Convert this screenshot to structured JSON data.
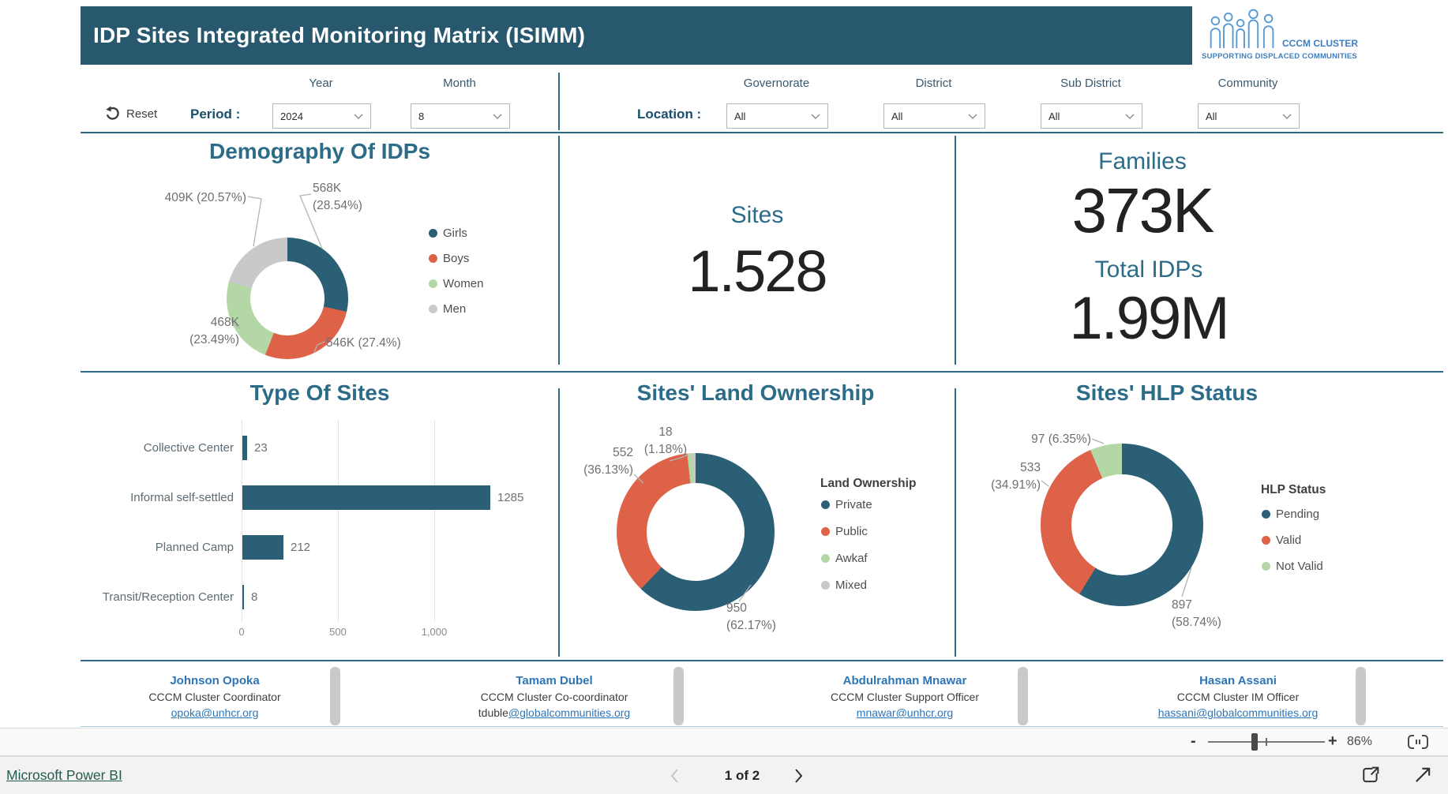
{
  "header": {
    "title": "IDP Sites Integrated Monitoring Matrix (ISIMM)",
    "logo": {
      "name": "CCCM CLUSTER",
      "tagline": "SUPPORTING DISPLACED COMMUNITIES"
    }
  },
  "filters": {
    "reset_label": "Reset",
    "period_label": "Period :",
    "location_label": "Location :",
    "year": {
      "label": "Year",
      "value": "2024"
    },
    "month": {
      "label": "Month",
      "value": "8"
    },
    "governorate": {
      "label": "Governorate",
      "value": "All"
    },
    "district": {
      "label": "District",
      "value": "All"
    },
    "sub_district": {
      "label": "Sub District",
      "value": "All"
    },
    "community": {
      "label": "Community",
      "value": "All"
    }
  },
  "kpis": {
    "sites": {
      "label": "Sites",
      "value": "1.528"
    },
    "families": {
      "label": "Families",
      "value": "373K"
    },
    "total_idps": {
      "label": "Total IDPs",
      "value": "1.99M"
    }
  },
  "chart_data": [
    {
      "type": "donut",
      "title": "Demography Of IDPs",
      "legend_position": "right",
      "slices": [
        {
          "label": "Girls",
          "display_value": "568K",
          "pct": 28.54,
          "color": "#2B5F75",
          "callout": [
            "568K",
            "(28.54%)"
          ]
        },
        {
          "label": "Boys",
          "display_value": "546K",
          "pct": 27.4,
          "color": "#DD6248",
          "callout": [
            "546K (27.4%)"
          ]
        },
        {
          "label": "Women",
          "display_value": "468K",
          "pct": 23.49,
          "color": "#B3D8A6",
          "callout": [
            "468K",
            "(23.49%)"
          ]
        },
        {
          "label": "Men",
          "display_value": "409K",
          "pct": 20.57,
          "color": "#C9C9C9",
          "callout": [
            "409K (20.57%)"
          ]
        }
      ]
    },
    {
      "type": "bar",
      "title": "Type Of Sites",
      "orientation": "horizontal",
      "categories": [
        "Collective Center",
        "Informal self-settled",
        "Planned Camp",
        "Transit/Reception Center"
      ],
      "values": [
        23,
        1285,
        212,
        8
      ],
      "value_labels": [
        "23",
        "1285",
        "212",
        "8"
      ],
      "x_ticks": [
        {
          "label": "0",
          "value": 0
        },
        {
          "label": "500",
          "value": 500
        },
        {
          "label": "1,000",
          "value": 1000
        }
      ],
      "xlim": [
        0,
        1330
      ],
      "bar_color": "#2B5F75",
      "grid": "dotted-vertical"
    },
    {
      "type": "donut",
      "title": "Sites' Land Ownership",
      "legend_title": "Land Ownership",
      "legend_position": "right",
      "slices": [
        {
          "label": "Private",
          "value": 950,
          "pct": 62.17,
          "color": "#2B5F75",
          "callout": [
            "950",
            "(62.17%)"
          ]
        },
        {
          "label": "Public",
          "value": 552,
          "pct": 36.13,
          "color": "#DD6248",
          "callout": [
            "552",
            "(36.13%)"
          ]
        },
        {
          "label": "Awkaf",
          "value": 18,
          "pct": 1.18,
          "color": "#B3D8A6",
          "callout": [
            "18",
            "(1.18%)"
          ]
        },
        {
          "label": "Mixed",
          "value": 8,
          "pct": 0.52,
          "color": "#C9C9C9",
          "callout": []
        }
      ]
    },
    {
      "type": "donut",
      "title": "Sites' HLP Status",
      "legend_title": "HLP Status",
      "legend_position": "right",
      "slices": [
        {
          "label": "Pending",
          "value": 897,
          "pct": 58.74,
          "color": "#2B5F75",
          "callout": [
            "897",
            "(58.74%)"
          ]
        },
        {
          "label": "Valid",
          "value": 533,
          "pct": 34.91,
          "color": "#DD6248",
          "callout": [
            "533",
            "(34.91%)"
          ]
        },
        {
          "label": "Not Valid",
          "value": 97,
          "pct": 6.35,
          "color": "#B3D8A6",
          "callout": [
            "97 (6.35%)"
          ]
        }
      ]
    }
  ],
  "contacts": [
    {
      "name": "Johnson Opoka",
      "role": "CCCM Cluster Coordinator",
      "email_prefix": "",
      "email_link": "opoka@unhcr.org"
    },
    {
      "name": "Tamam Dubel",
      "role": "CCCM Cluster Co-coordinator",
      "email_prefix": "tduble",
      "email_link": "@globalcommunities.org"
    },
    {
      "name": "Abdulrahman  Mnawar",
      "role": "CCCM Cluster Support Officer",
      "email_prefix": "",
      "email_link": "mnawar@unhcr.org"
    },
    {
      "name": "Hasan Assani",
      "role": "CCCM Cluster IM Officer",
      "email_prefix": "",
      "email_link": "hassani@globalcommunities.org"
    }
  ],
  "zoom_bar": {
    "minus": "-",
    "plus": "+",
    "level": "86%"
  },
  "bottom_bar": {
    "brand": "Microsoft Power BI",
    "page_indicator": "1 of 2"
  }
}
